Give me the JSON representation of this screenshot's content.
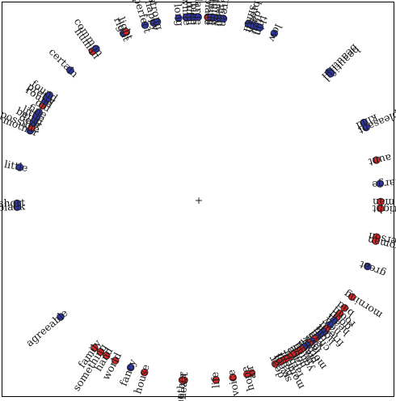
{
  "colors": {
    "red": "#d62728",
    "blue": "#2f37a8"
  },
  "chart_data": {
    "type": "scatter",
    "title": "",
    "center_marker": "+",
    "encoding": "angle",
    "angle_unit": "degrees",
    "points": [
      {
        "w": "beautiful",
        "a": -44.3,
        "c": "blue"
      },
      {
        "w": "beautiful",
        "a": -43.5,
        "c": "blue"
      },
      {
        "w": "kind",
        "a": -24.8,
        "c": "blue"
      },
      {
        "w": "pleasant",
        "a": -23.1,
        "c": "blue"
      },
      {
        "w": "aunt",
        "a": -12.3,
        "c": "red"
      },
      {
        "w": "large",
        "a": -4.8,
        "c": "blue"
      },
      {
        "w": "man",
        "a": 0.9,
        "c": "red"
      },
      {
        "w": "right",
        "a": 3.0,
        "c": "red"
      },
      {
        "w": "person",
        "a": 12.1,
        "c": "red"
      },
      {
        "w": "woman",
        "a": 13.4,
        "c": "red"
      },
      {
        "w": "great",
        "a": 21.8,
        "c": "blue"
      },
      {
        "w": "morning",
        "a": 32.6,
        "c": "red"
      },
      {
        "w": "bad",
        "a": 36.8,
        "c": "red"
      },
      {
        "w": "room",
        "a": 39.1,
        "c": "red"
      },
      {
        "w": "good",
        "a": 40.6,
        "c": "red"
      },
      {
        "w": "heart",
        "a": 42.0,
        "c": "blue"
      },
      {
        "w": "new",
        "a": 43.8,
        "c": "blue"
      },
      {
        "w": "friend",
        "a": 45.5,
        "c": "red"
      },
      {
        "w": "light",
        "a": 46.8,
        "c": "blue"
      },
      {
        "w": "old",
        "a": 48.0,
        "c": "blue"
      },
      {
        "w": "child",
        "a": 49.4,
        "c": "blue"
      },
      {
        "w": "eye",
        "a": 50.3,
        "c": "red"
      },
      {
        "w": "love",
        "a": 51.6,
        "c": "blue"
      },
      {
        "w": "lady",
        "a": 52.4,
        "c": "red"
      },
      {
        "w": "mother",
        "a": 53.4,
        "c": "blue"
      },
      {
        "w": "place",
        "a": 54.6,
        "c": "blue"
      },
      {
        "w": "mind",
        "a": 55.6,
        "c": "red"
      },
      {
        "w": "young",
        "a": 56.6,
        "c": "red"
      },
      {
        "w": "hope",
        "a": 57.8,
        "c": "red"
      },
      {
        "w": "face",
        "a": 58.8,
        "c": "red"
      },
      {
        "w": "father",
        "a": 60.0,
        "c": "red"
      },
      {
        "w": "moment",
        "a": 61.4,
        "c": "red"
      },
      {
        "w": "hand",
        "a": 62.6,
        "c": "red"
      },
      {
        "w": "sweet",
        "a": 63.6,
        "c": "red"
      },
      {
        "w": "dear",
        "a": 65.1,
        "c": "red"
      },
      {
        "w": "air",
        "a": 73.1,
        "c": "red"
      },
      {
        "w": "hope",
        "a": 74.6,
        "c": "red"
      },
      {
        "w": "voice",
        "a": 79.2,
        "c": "red"
      },
      {
        "w": "life",
        "a": 84.6,
        "c": "red"
      },
      {
        "w": "heart",
        "a": 94.6,
        "c": "red"
      },
      {
        "w": "mother",
        "a": 95.2,
        "c": "red"
      },
      {
        "w": "house",
        "a": 107.4,
        "c": "red"
      },
      {
        "w": "fancy",
        "a": 112.0,
        "c": "blue"
      },
      {
        "w": "world",
        "a": 117.3,
        "c": "red"
      },
      {
        "w": "hand",
        "a": 120.5,
        "c": "red"
      },
      {
        "w": "something",
        "a": 122.7,
        "c": "red"
      },
      {
        "w": "family",
        "a": 125.0,
        "c": "red"
      },
      {
        "w": "agreeable",
        "a": 139.5,
        "c": "blue"
      },
      {
        "w": "black",
        "a": 177.4,
        "c": "blue"
      },
      {
        "w": "short",
        "a": 178.6,
        "c": "blue"
      },
      {
        "w": "little",
        "a": 190.0,
        "c": "blue"
      },
      {
        "w": "mother",
        "a": 202.0,
        "c": "blue"
      },
      {
        "w": "possible",
        "a": 203.2,
        "c": "red"
      },
      {
        "w": "dear",
        "a": 204.6,
        "c": "blue"
      },
      {
        "w": "being",
        "a": 205.8,
        "c": "blue"
      },
      {
        "w": "little",
        "a": 207.0,
        "c": "blue"
      },
      {
        "w": "fine",
        "a": 208.4,
        "c": "blue"
      },
      {
        "w": "old",
        "a": 210.8,
        "c": "red"
      },
      {
        "w": "round",
        "a": 212.4,
        "c": "blue"
      },
      {
        "w": "pretty",
        "a": 213.6,
        "c": "blue"
      },
      {
        "w": "found",
        "a": 214.8,
        "c": "blue"
      },
      {
        "w": "certain",
        "a": 225.0,
        "c": "blue"
      },
      {
        "w": "human",
        "a": 234.2,
        "c": "red"
      },
      {
        "w": "common",
        "a": 235.6,
        "c": "blue"
      },
      {
        "w": "right",
        "a": 245.5,
        "c": "blue"
      },
      {
        "w": "light",
        "a": 246.5,
        "c": "red"
      },
      {
        "w": "perfect",
        "a": 252.8,
        "c": "blue"
      },
      {
        "w": "happy",
        "a": 255.6,
        "c": "blue"
      },
      {
        "w": "strong",
        "a": 256.8,
        "c": "blue"
      },
      {
        "w": "long",
        "a": 263.6,
        "c": "blue"
      },
      {
        "w": "white",
        "a": 266.0,
        "c": "blue"
      },
      {
        "w": "beautiful",
        "a": 267.2,
        "c": "blue"
      },
      {
        "w": "blue",
        "a": 268.4,
        "c": "blue"
      },
      {
        "w": "large",
        "a": 269.8,
        "c": "blue"
      },
      {
        "w": "place",
        "a": 272.8,
        "c": "red"
      },
      {
        "w": "thing",
        "a": 273.8,
        "c": "blue"
      },
      {
        "w": "nothing",
        "a": 274.8,
        "c": "blue"
      },
      {
        "w": "way",
        "a": 275.8,
        "c": "blue"
      },
      {
        "w": "man",
        "a": 276.8,
        "c": "blue"
      },
      {
        "w": "green",
        "a": 277.8,
        "c": "blue"
      },
      {
        "w": "small",
        "a": 285.8,
        "c": "blue"
      },
      {
        "w": "brown",
        "a": 286.6,
        "c": "blue"
      },
      {
        "w": "dark",
        "a": 287.6,
        "c": "blue"
      },
      {
        "w": "tall",
        "a": 288.6,
        "c": "blue"
      },
      {
        "w": "thin",
        "a": 289.6,
        "c": "blue"
      },
      {
        "w": "low",
        "a": 294.5,
        "c": "blue"
      }
    ]
  }
}
